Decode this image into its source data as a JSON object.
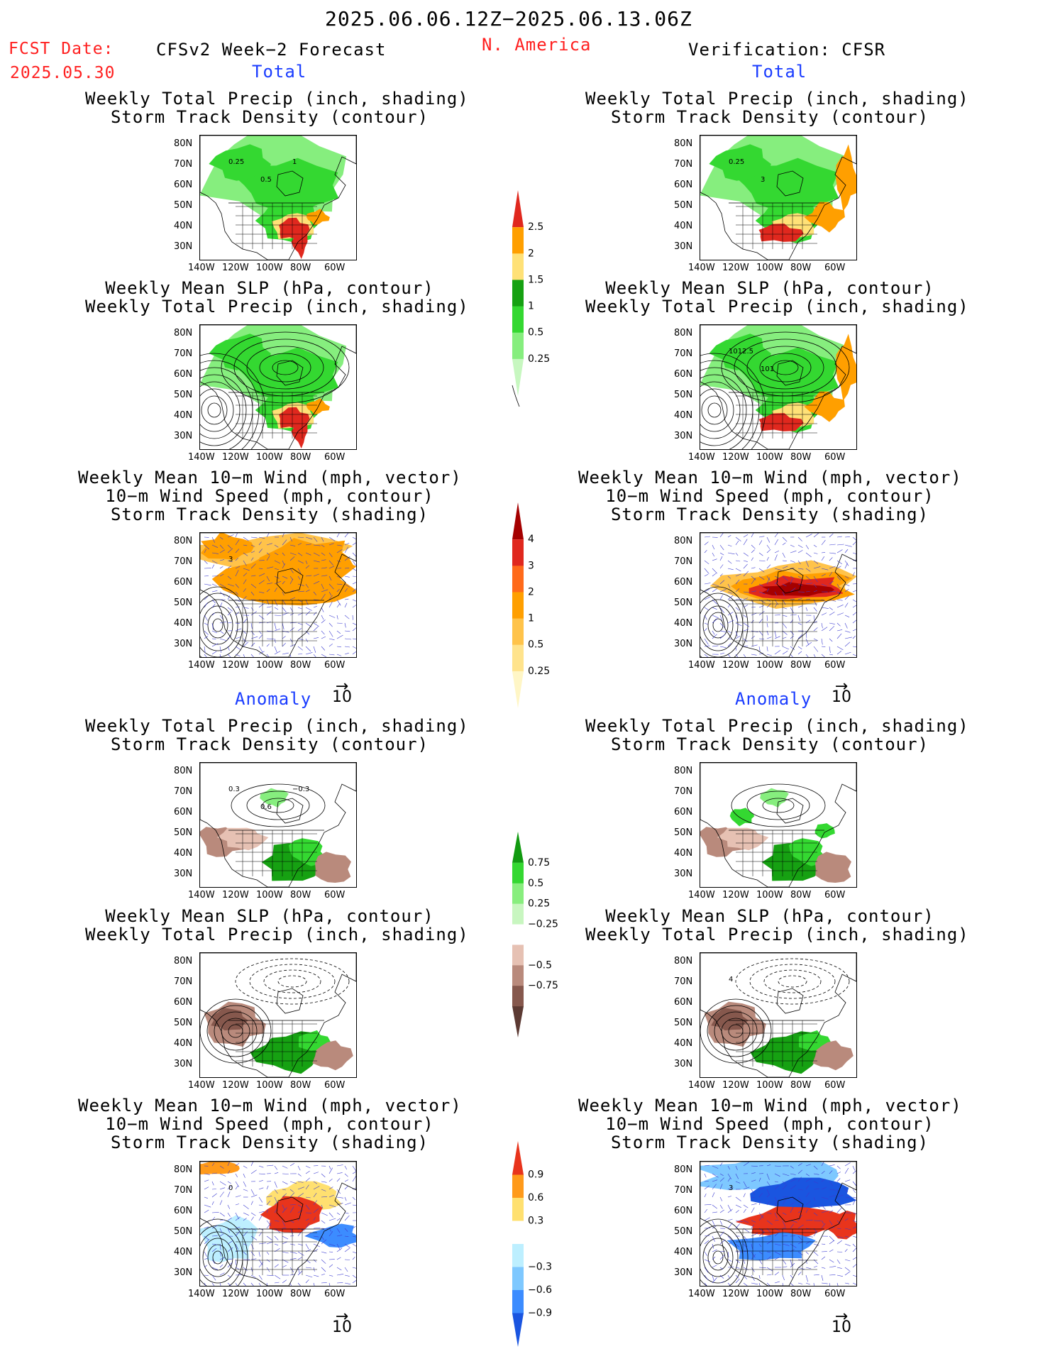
{
  "header": {
    "date_range": "2025.06.06.12Z−2025.06.13.06Z",
    "fcst_label": "FCST Date:",
    "fcst_date": "2025.05.30",
    "model": "CFSv2 Week−2 Forecast",
    "region": "N. America",
    "verification": "Verification: CFSR"
  },
  "sections": {
    "total": "Total",
    "anomaly": "Anomaly"
  },
  "panels": {
    "precip_storm": [
      "Weekly Total Precip (inch, shading)",
      "Storm Track Density (contour)"
    ],
    "slp_precip": [
      "Weekly Mean SLP (hPa, contour)",
      "Weekly Total Precip (inch, shading)"
    ],
    "wind_storm": [
      "Weekly Mean 10−m Wind (mph, vector)",
      "10−m Wind Speed (mph, contour)",
      "Storm Track Density (shading)"
    ]
  },
  "axes": {
    "lat_ticks": [
      "80N",
      "70N",
      "60N",
      "50N",
      "40N",
      "30N"
    ],
    "lon_ticks": [
      "140W",
      "120W",
      "100W",
      "80W",
      "60W"
    ]
  },
  "vector_ref": "10",
  "contour_labels": {
    "fc_total_storm": [
      "0.25",
      "0.5",
      "1"
    ],
    "obs_total_storm": [
      "0.25",
      "3"
    ],
    "obs_total_slp": [
      "1012.5",
      "101"
    ],
    "fc_total_wind": [
      "3"
    ],
    "fc_anom_storm": [
      "0.3",
      "0.6",
      "−0.3"
    ],
    "obs_anom_slp": [
      "4"
    ],
    "fc_anom_wind": [
      "0"
    ],
    "obs_anom_wind": [
      "3"
    ]
  },
  "colorbars": {
    "precip_total": {
      "labels": [
        "2.5",
        "2",
        "1.5",
        "1",
        "0.5",
        "0.25"
      ],
      "colors": [
        "#e0281e",
        "#ff9f00",
        "#ffe177",
        "#16a112",
        "#34d831",
        "#86ee7e",
        "#c7f7c0"
      ]
    },
    "storm_total": {
      "labels": [
        "4",
        "3",
        "2",
        "1",
        "0.5",
        "0.25"
      ],
      "colors": [
        "#a50000",
        "#e0281e",
        "#ff6a1a",
        "#ff9f00",
        "#ffc34a",
        "#ffe38c",
        "#fff6c6"
      ]
    },
    "precip_anom": {
      "labels": [
        "0.75",
        "0.5",
        "0.25",
        "−0.25",
        "−0.5",
        "−0.75"
      ],
      "colors": [
        "#119a10",
        "#34d831",
        "#88ee7e",
        "#c8f6c0",
        "#ffffff",
        "#e6c1b3",
        "#b98a7c",
        "#86584d",
        "#5c3a33"
      ]
    },
    "storm_anom": {
      "labels": [
        "0.9",
        "0.6",
        "0.3",
        "−0.3",
        "−0.6",
        "−0.9"
      ],
      "colors": [
        "#e8341c",
        "#ff9a1a",
        "#ffe070",
        "#ffffff",
        "#bdefff",
        "#7ec8ff",
        "#3c8cff",
        "#1a55e0"
      ]
    }
  }
}
